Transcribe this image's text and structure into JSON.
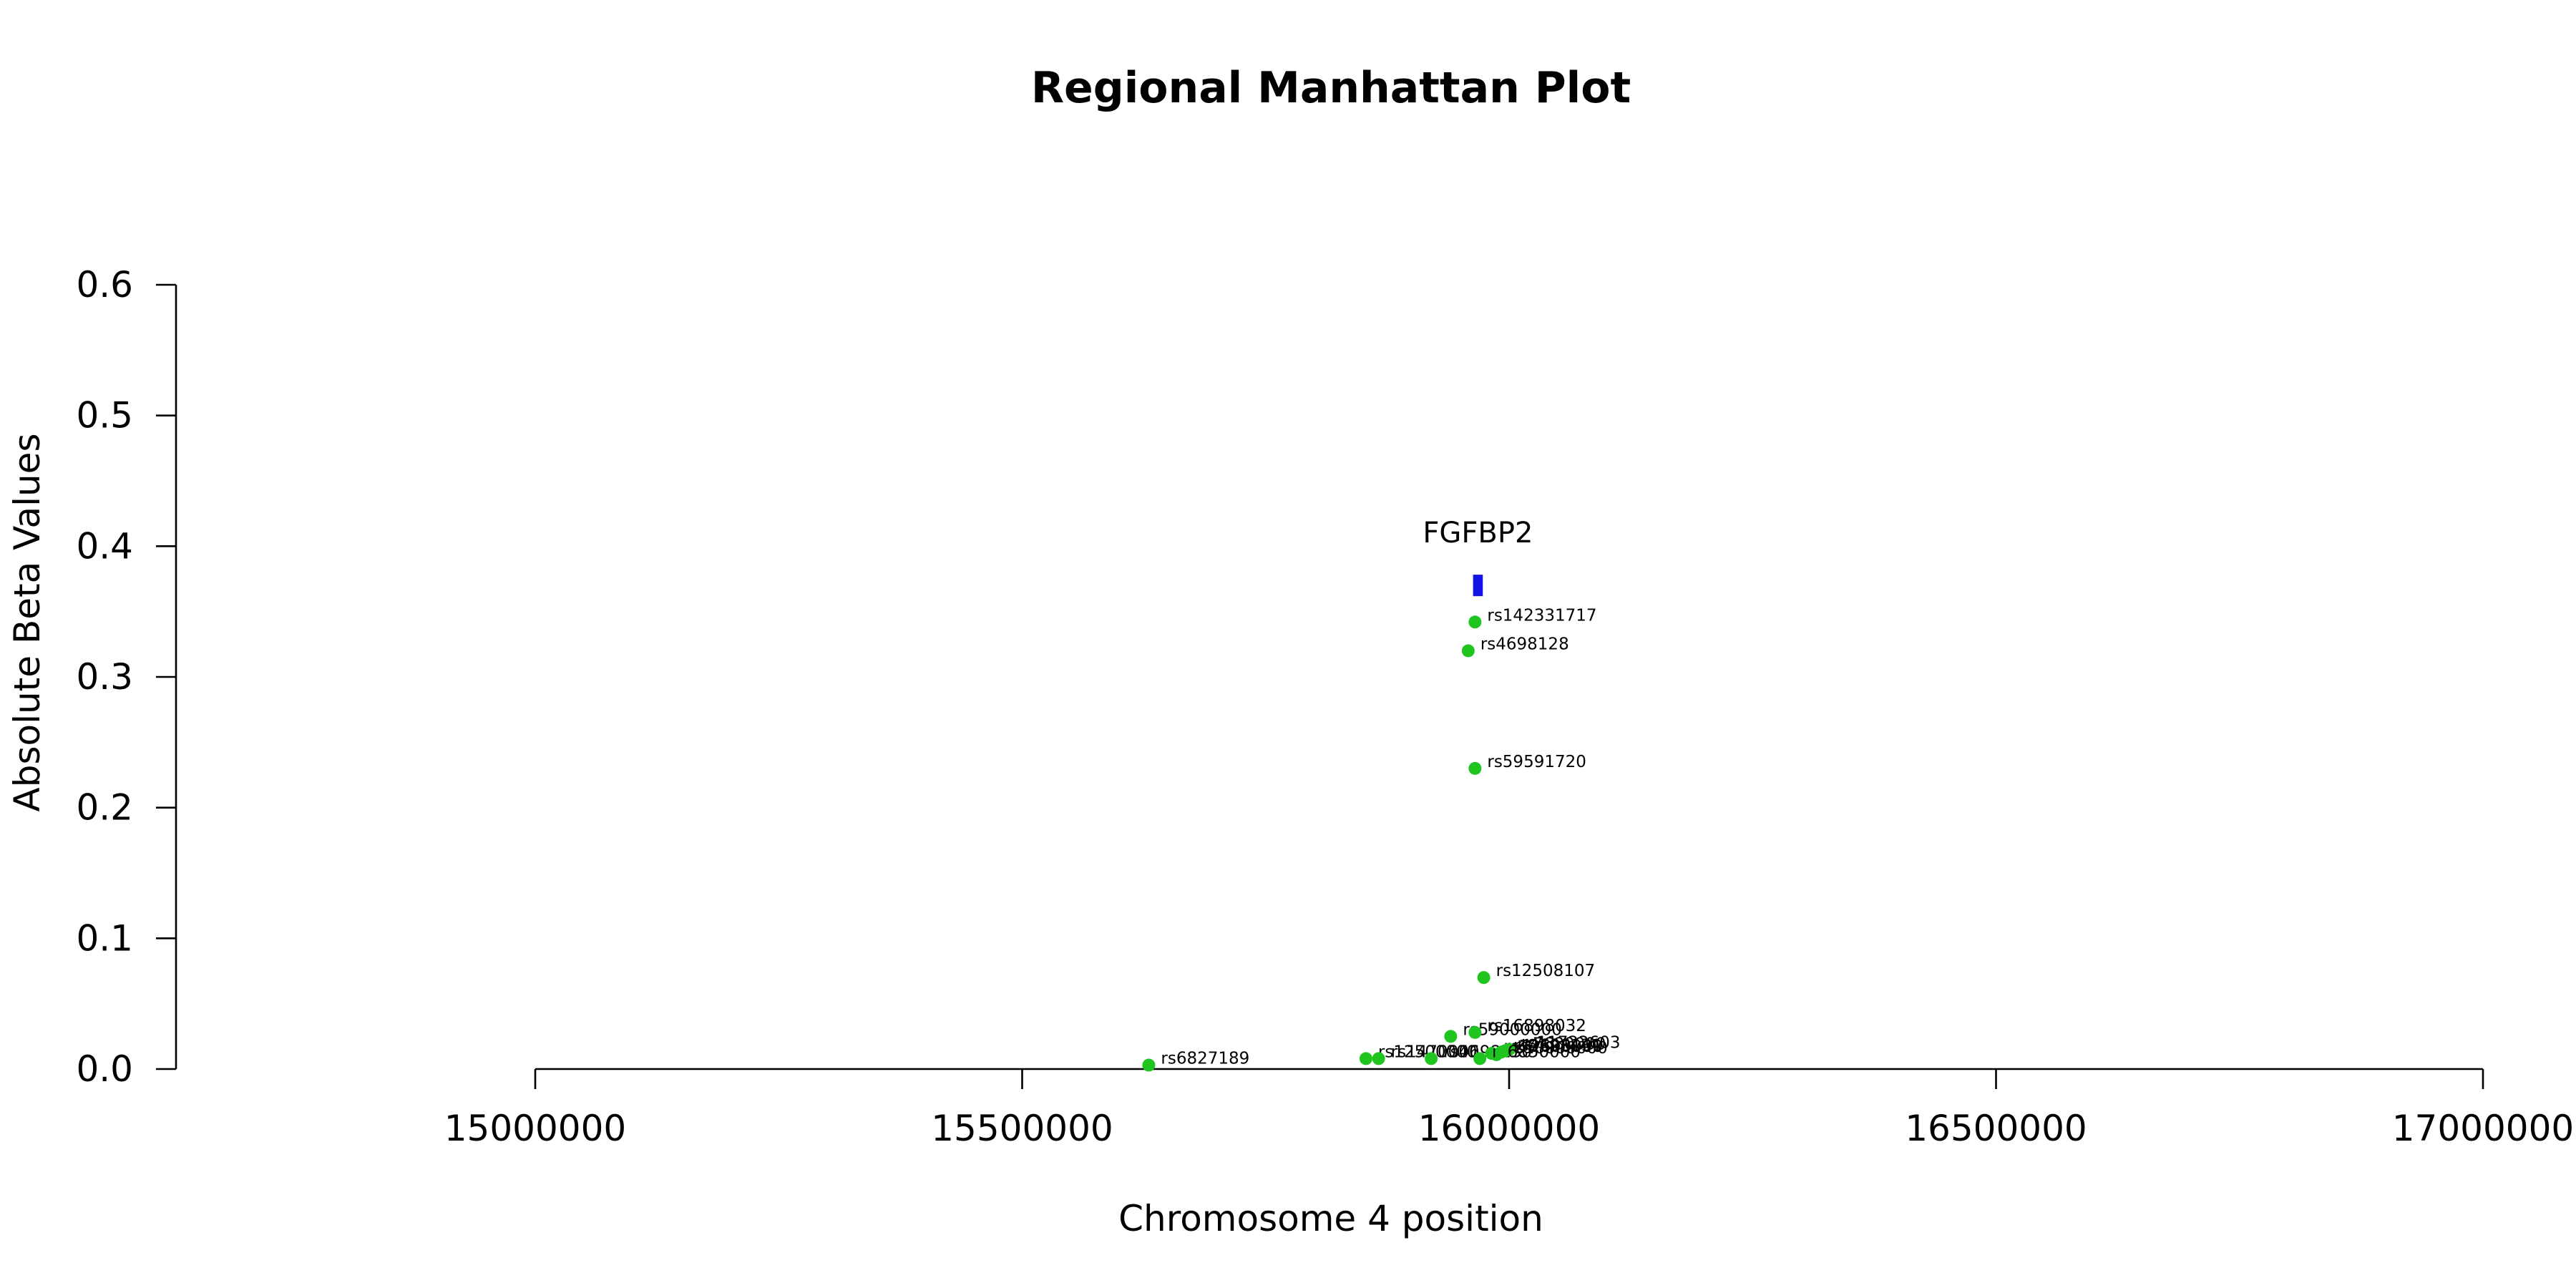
{
  "chart_data": {
    "type": "scatter",
    "title": "Regional Manhattan Plot",
    "xlabel": "Chromosome 4 position",
    "ylabel": "Absolute Beta Values",
    "xlim": [
      14630000,
      17000000
    ],
    "ylim": [
      0,
      0.6
    ],
    "xticks": [
      15000000,
      15500000,
      16000000,
      16500000,
      17000000
    ],
    "xtick_labels": [
      "15000000",
      "15500000",
      "16000000",
      "16500000",
      "17000000"
    ],
    "yticks": [
      0,
      0.1,
      0.2,
      0.3,
      0.4,
      0.5,
      0.6
    ],
    "ytick_labels": [
      "0.0",
      "0.1",
      "0.2",
      "0.3",
      "0.4",
      "0.5",
      "0.6"
    ],
    "point_color": "#1fc41f",
    "gene_color": "#1414e6",
    "gene": {
      "name": "FGFBP2",
      "start": 15963000,
      "end": 15973000,
      "y": 0.37
    },
    "points": [
      {
        "label": "rs142331717",
        "x": 15965000,
        "y": 0.342
      },
      {
        "label": "rs4698128",
        "x": 15958000,
        "y": 0.32
      },
      {
        "label": "rs59591720",
        "x": 15965000,
        "y": 0.23
      },
      {
        "label": "rs12508107",
        "x": 15974000,
        "y": 0.07
      },
      {
        "label": "rs6827189",
        "x": 15630000,
        "y": 0.003
      },
      {
        "label": "rs12500000",
        "x": 15853000,
        "y": 0.008
      },
      {
        "label": "rs1470000",
        "x": 15866000,
        "y": 0.008
      },
      {
        "label": "rs4698130",
        "x": 15920000,
        "y": 0.008
      },
      {
        "label": "rs59000000",
        "x": 15940000,
        "y": 0.025
      },
      {
        "label": "rs16898032",
        "x": 15965000,
        "y": 0.028
      },
      {
        "label": "rs72600000",
        "x": 15982000,
        "y": 0.012
      },
      {
        "label": "rs10000000",
        "x": 15987000,
        "y": 0.011
      },
      {
        "label": "rs7680000",
        "x": 15996000,
        "y": 0.014
      },
      {
        "label": "rs11722603",
        "x": 16000000,
        "y": 0.015
      },
      {
        "label": "rs6850000",
        "x": 15970000,
        "y": 0.008
      },
      {
        "label": "rs4698131",
        "x": 15992000,
        "y": 0.013
      }
    ]
  }
}
